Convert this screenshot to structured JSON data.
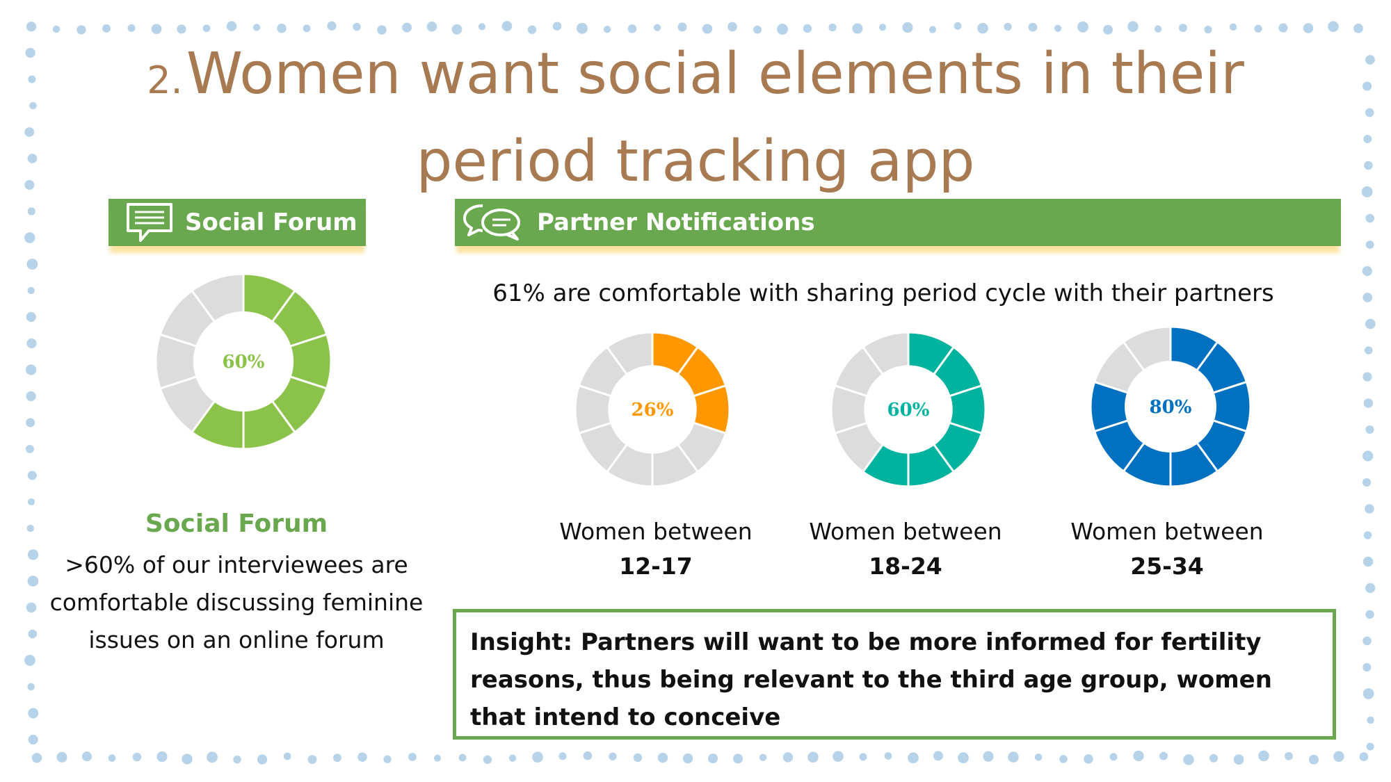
{
  "slide": {
    "title_number": "2.",
    "title": "Women want social elements in their period tracking app"
  },
  "social_forum": {
    "banner_label": "Social Forum",
    "heading": "Social Forum",
    "body": ">60% of our interviewees are comfortable discussing feminine issues on an online forum",
    "icon": "speech-bubble-icon"
  },
  "partner_notifications": {
    "banner_label": "Partner Notifications",
    "subtitle": "61% are comfortable with sharing period cycle with their partners",
    "icon": "chat-bubbles-icon",
    "insight": "Insight: Partners will want to be more informed for fertility reasons, thus being relevant to the third age group, women that intend to conceive"
  },
  "chart_data": [
    {
      "type": "pie",
      "variant": "donut",
      "segments": 10,
      "value": 60,
      "label": "60%",
      "color": "#8bc34a",
      "caption": "",
      "caption_range": ""
    },
    {
      "type": "pie",
      "variant": "donut",
      "segments": 10,
      "value": 26,
      "label": "26%",
      "color": "#ff9800",
      "caption": "Women between",
      "caption_range": "12-17"
    },
    {
      "type": "pie",
      "variant": "donut",
      "segments": 10,
      "value": 60,
      "label": "60%",
      "color": "#00b39f",
      "caption": "Women between",
      "caption_range": "18-24"
    },
    {
      "type": "pie",
      "variant": "donut",
      "segments": 10,
      "value": 80,
      "label": "80%",
      "color": "#0070c0",
      "caption": "Women between",
      "caption_range": "25-34"
    }
  ],
  "colors": {
    "title": "#a87a52",
    "banner": "#6aa84f",
    "border_dots": "#b7d3ea",
    "empty_segment": "#dcdcdc"
  }
}
